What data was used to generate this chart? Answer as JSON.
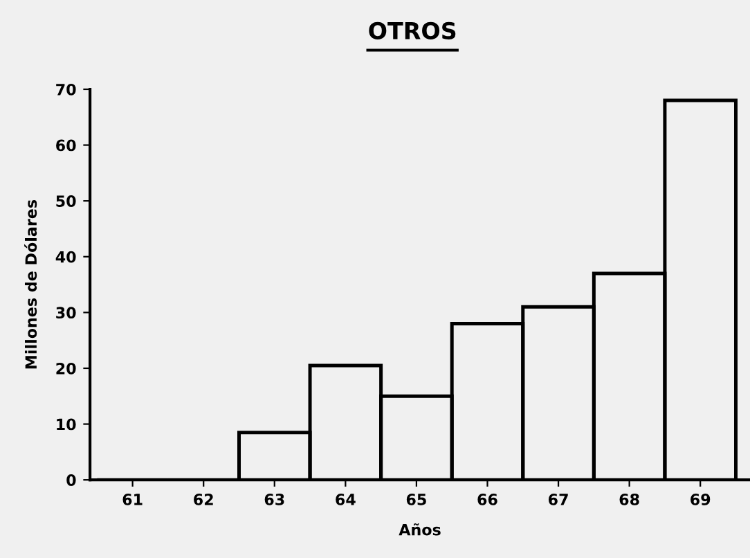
{
  "chart_data": {
    "type": "bar",
    "title": "OTROS",
    "xlabel": "Años",
    "ylabel": "Millones de Dólares",
    "categories": [
      "61",
      "62",
      "63",
      "64",
      "65",
      "66",
      "67",
      "68",
      "69"
    ],
    "values": [
      0,
      0,
      8.5,
      20.5,
      15,
      28,
      31,
      37,
      68
    ],
    "color": "#000000",
    "ylim": [
      0,
      70
    ],
    "yticks": [
      0,
      10,
      20,
      30,
      40,
      50,
      60,
      70
    ],
    "grid": false,
    "legend": false
  }
}
